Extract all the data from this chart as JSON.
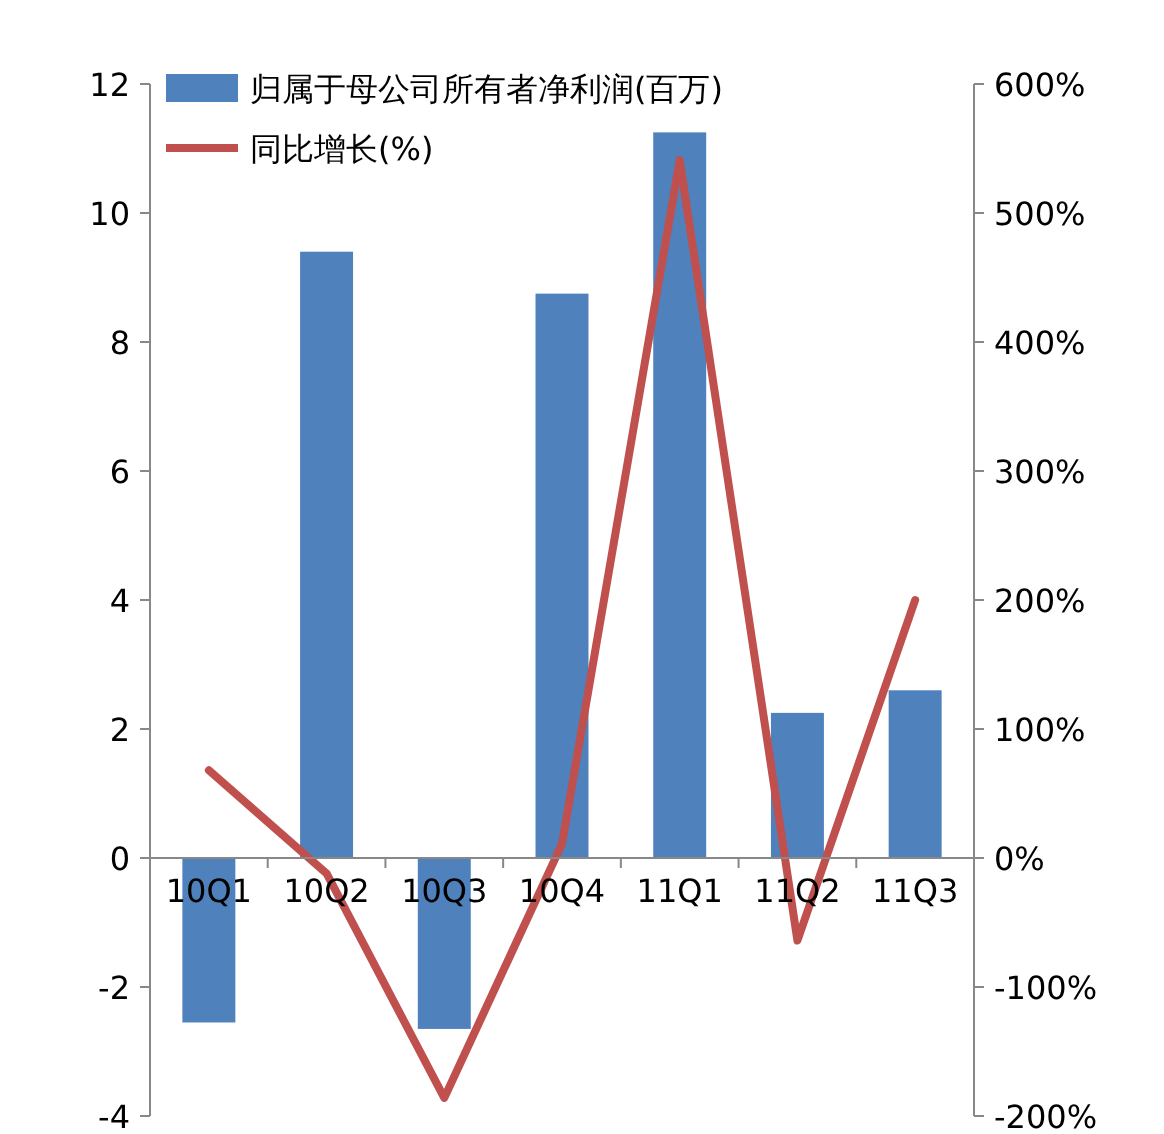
{
  "chart_data": {
    "type": "bar",
    "categories": [
      "10Q1",
      "10Q2",
      "10Q3",
      "10Q4",
      "11Q1",
      "11Q2",
      "11Q3"
    ],
    "series": [
      {
        "name": "归属于母公司所有者净利润(百万)",
        "color": "#4f81bd",
        "values": [
          -2.55,
          9.4,
          -2.65,
          8.75,
          11.25,
          2.25,
          2.6
        ]
      },
      {
        "name": "同比增长(%)",
        "type": "line",
        "axis": "y2",
        "color": "#c0504d",
        "values": [
          68,
          -12,
          -186,
          11,
          541,
          -64,
          200
        ]
      }
    ],
    "ylim": [
      -4,
      12
    ],
    "yticks": [
      -4,
      -2,
      0,
      2,
      4,
      6,
      8,
      10,
      12
    ],
    "y2lim": [
      -200,
      600
    ],
    "y2ticks": [
      {
        "value": -200,
        "label": "-200%"
      },
      {
        "value": -100,
        "label": "-100%"
      },
      {
        "value": 0,
        "label": "0%"
      },
      {
        "value": 100,
        "label": "100%"
      },
      {
        "value": 200,
        "label": "200%"
      },
      {
        "value": 300,
        "label": "300%"
      },
      {
        "value": 400,
        "label": "400%"
      },
      {
        "value": 500,
        "label": "500%"
      },
      {
        "value": 600,
        "label": "600%"
      }
    ],
    "grid": false,
    "legend": "top left"
  }
}
